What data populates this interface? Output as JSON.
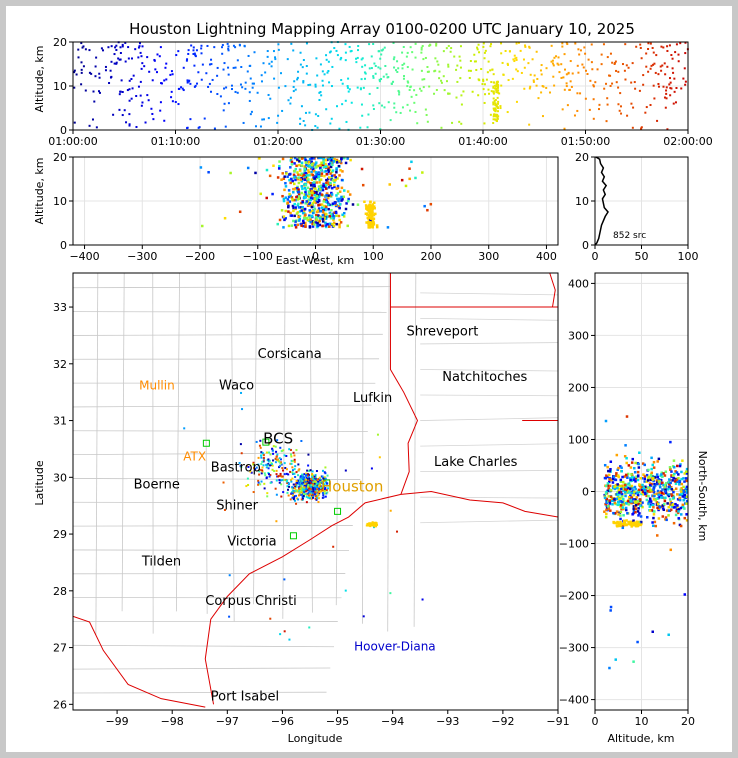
{
  "title": "Houston Lightning Mapping Array 0100-0200 UTC January 10, 2025",
  "colors": {
    "axes": "#000000",
    "county": "#c8c8c8",
    "state": "#dd0000",
    "orange_label": "#ff8c00",
    "blue_label": "#0000cc",
    "houston_label": "#e0a000",
    "station": "#00cc00"
  },
  "chart_data": [
    {
      "id": "time-height",
      "type": "scatter",
      "ylabel": "Altitude, km",
      "ylim": [
        0,
        20
      ],
      "yticks": [
        "0",
        "10",
        "20"
      ],
      "xticks": [
        "01:00:00",
        "01:10:00",
        "01:20:00",
        "01:30:00",
        "01:40:00",
        "01:50:00",
        "02:00:00"
      ],
      "xlim_minutes": [
        0,
        60
      ],
      "colormap": "time (blue→red)"
    },
    {
      "id": "ew-height",
      "type": "scatter",
      "xlabel": "East-West, km",
      "ylabel": "Altitude, km",
      "xlim": [
        -420,
        420
      ],
      "ylim": [
        0,
        20
      ],
      "xticks": [
        "−400",
        "−300",
        "−200",
        "−100",
        "0",
        "100",
        "200",
        "300",
        "400"
      ],
      "yticks": [
        "0",
        "10",
        "20"
      ]
    },
    {
      "id": "altitude-histogram",
      "type": "line",
      "xlim": [
        0,
        100
      ],
      "ylim": [
        0,
        20
      ],
      "xticks": [
        "0",
        "50",
        "100"
      ],
      "yticks": [
        "0",
        "10",
        "20"
      ],
      "annotation": "852 src",
      "profile": [
        [
          0,
          0
        ],
        [
          2,
          0.5
        ],
        [
          4,
          1.5
        ],
        [
          5,
          2.5
        ],
        [
          6,
          3.5
        ],
        [
          7,
          4.5
        ],
        [
          9,
          5.5
        ],
        [
          11,
          6.5
        ],
        [
          14,
          7.5
        ],
        [
          10,
          8.5
        ],
        [
          9,
          9.5
        ],
        [
          8,
          10.5
        ],
        [
          11,
          11.5
        ],
        [
          9,
          12.5
        ],
        [
          12,
          13.5
        ],
        [
          8,
          14.5
        ],
        [
          10,
          15.5
        ],
        [
          7,
          16.5
        ],
        [
          9,
          17.5
        ],
        [
          6,
          18.5
        ],
        [
          5,
          19.5
        ],
        [
          1,
          20
        ]
      ]
    },
    {
      "id": "plan-view",
      "type": "scatter",
      "xlabel": "Longitude",
      "ylabel": "Latitude",
      "xlim": [
        -99.8,
        -91
      ],
      "ylim": [
        25.9,
        33.6
      ],
      "xticks": [
        "−99",
        "−98",
        "−97",
        "−96",
        "−95",
        "−94",
        "−93",
        "−92",
        "−91"
      ],
      "yticks": [
        "26",
        "27",
        "28",
        "29",
        "30",
        "31",
        "32",
        "33"
      ],
      "cities": [
        {
          "name": "Shreveport",
          "lon": -93.75,
          "lat": 32.5,
          "style": "black"
        },
        {
          "name": "Corsicana",
          "lon": -96.45,
          "lat": 32.1,
          "style": "black"
        },
        {
          "name": "Natchitoches",
          "lon": -93.1,
          "lat": 31.7,
          "style": "black"
        },
        {
          "name": "Mullin",
          "lon": -98.6,
          "lat": 31.55,
          "style": "orange"
        },
        {
          "name": "Waco",
          "lon": -97.15,
          "lat": 31.55,
          "style": "black"
        },
        {
          "name": "Lufkin",
          "lon": -94.72,
          "lat": 31.33,
          "style": "black"
        },
        {
          "name": "BCS",
          "lon": -96.35,
          "lat": 30.6,
          "style": "large"
        },
        {
          "name": "ATX",
          "lon": -97.8,
          "lat": 30.3,
          "style": "orange"
        },
        {
          "name": "Bastrop",
          "lon": -97.3,
          "lat": 30.1,
          "style": "black"
        },
        {
          "name": "Lake Charles",
          "lon": -93.25,
          "lat": 30.2,
          "style": "black"
        },
        {
          "name": "Houston",
          "lon": -95.3,
          "lat": 29.75,
          "style": "houston"
        },
        {
          "name": "Boerne",
          "lon": -98.7,
          "lat": 29.8,
          "style": "black"
        },
        {
          "name": "Shiner",
          "lon": -97.2,
          "lat": 29.43,
          "style": "black"
        },
        {
          "name": "Victoria",
          "lon": -97.0,
          "lat": 28.8,
          "style": "black"
        },
        {
          "name": "Tilden",
          "lon": -98.55,
          "lat": 28.45,
          "style": "black"
        },
        {
          "name": "Corpus Christi",
          "lon": -97.4,
          "lat": 27.75,
          "style": "black"
        },
        {
          "name": "Hoover-Diana",
          "lon": -94.7,
          "lat": 26.95,
          "style": "blue"
        },
        {
          "name": "Port Isabel",
          "lon": -97.3,
          "lat": 26.07,
          "style": "black"
        }
      ]
    },
    {
      "id": "height-ns",
      "type": "scatter",
      "xlabel": "Altitude, km",
      "ylabel": "North-South, km",
      "xlim": [
        0,
        20
      ],
      "ylim": [
        -420,
        420
      ],
      "xticks": [
        "0",
        "10",
        "20"
      ],
      "yticks": [
        "−400",
        "−300",
        "−200",
        "−100",
        "0",
        "100",
        "200",
        "300",
        "400"
      ]
    }
  ]
}
